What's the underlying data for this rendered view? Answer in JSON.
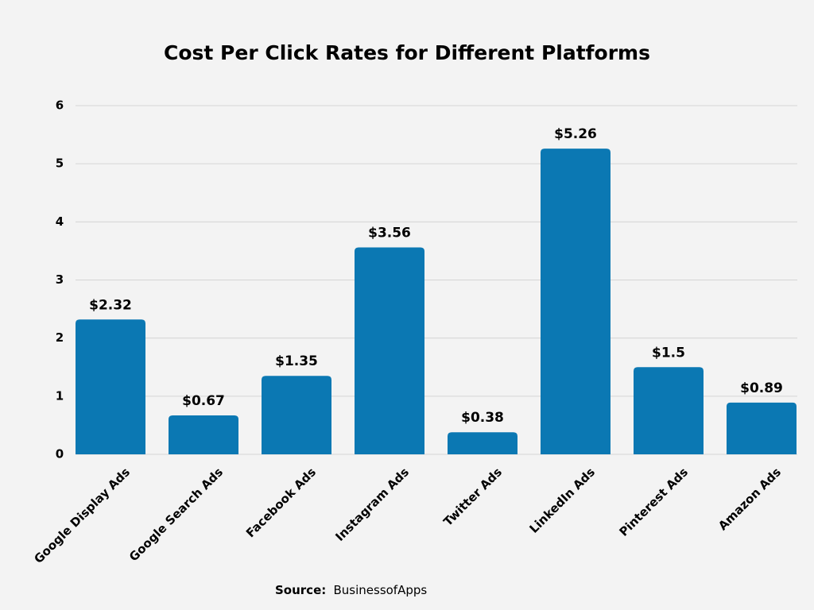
{
  "chart_data": {
    "type": "bar",
    "title": "Cost Per Click Rates for Different Platforms",
    "categories": [
      "Google Display Ads",
      "Google Search Ads",
      "Facebook Ads",
      "Instagram Ads",
      "Twitter Ads",
      "LinkedIn Ads",
      "Pinterest Ads",
      "Amazon Ads"
    ],
    "values": [
      2.32,
      0.67,
      1.35,
      3.56,
      0.38,
      5.26,
      1.5,
      0.89
    ],
    "value_labels": [
      "$2.32",
      "$0.67",
      "$1.35",
      "$3.56",
      "$0.38",
      "$5.26",
      "$1.5",
      "$0.89"
    ],
    "color": "#0b78b3",
    "ylim": [
      0,
      6
    ],
    "yticks": [
      0,
      1,
      2,
      3,
      4,
      5,
      6
    ],
    "grid": true,
    "source_label": "Source:",
    "source": "BusinessofApps"
  }
}
